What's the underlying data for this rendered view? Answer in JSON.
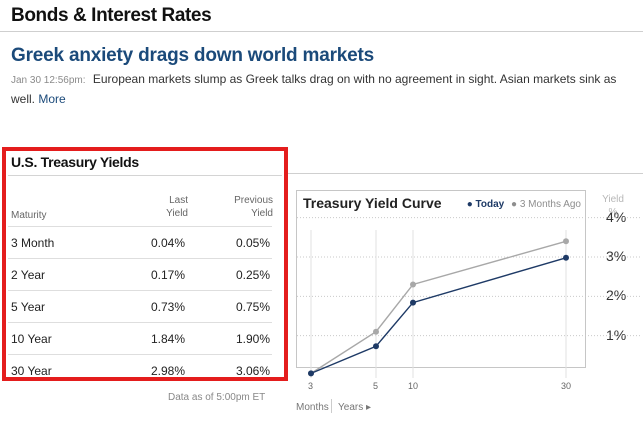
{
  "section": {
    "title": "Bonds & Interest Rates"
  },
  "story": {
    "headline": "Greek anxiety drags down world markets",
    "timestamp": "Jan 30 12:56pm:",
    "summary": "European markets slump as Greek talks drag on with no agreement in sight. Asian markets sink as well.",
    "more_label": "More"
  },
  "yields": {
    "title": "U.S. Treasury Yields",
    "col_maturity": "Maturity",
    "col_last_1": "Last",
    "col_last_2": "Yield",
    "col_prev_1": "Previous",
    "col_prev_2": "Yield",
    "rows": [
      {
        "maturity": "3 Month",
        "last": "0.04%",
        "previous": "0.05%"
      },
      {
        "maturity": "2 Year",
        "last": "0.17%",
        "previous": "0.25%"
      },
      {
        "maturity": "5 Year",
        "last": "0.73%",
        "previous": "0.75%"
      },
      {
        "maturity": "10 Year",
        "last": "1.84%",
        "previous": "1.90%"
      },
      {
        "maturity": "30 Year",
        "last": "2.98%",
        "previous": "3.06%"
      }
    ],
    "data_as_of": "Data as of 5:00pm ET"
  },
  "chart_data": {
    "type": "line",
    "title": "Treasury Yield Curve",
    "legend": [
      "Today",
      "3 Months Ago"
    ],
    "legend_position": "top-right",
    "ylabel_1": "Yield",
    "ylabel_2": "%",
    "y_ticks": [
      "1%",
      "2%",
      "3%",
      "4%"
    ],
    "ylim": [
      0,
      4.5
    ],
    "x_ticks": [
      "3",
      "5",
      "10",
      "30"
    ],
    "x_unit_months": "Months",
    "x_unit_years": "Years ▸",
    "grid": true,
    "series": [
      {
        "name": "Today",
        "color": "#1e3a66",
        "values": [
          0.04,
          0.73,
          1.84,
          2.98
        ]
      },
      {
        "name": "3 Months Ago",
        "color": "#a8a8a8",
        "values": [
          0.04,
          1.1,
          2.3,
          3.4
        ]
      }
    ]
  }
}
